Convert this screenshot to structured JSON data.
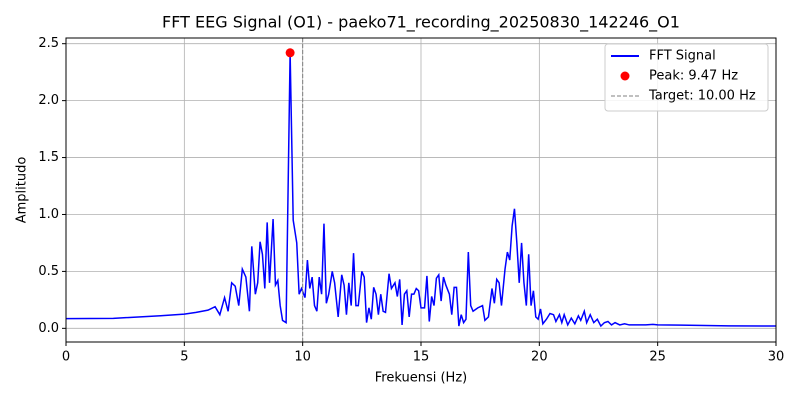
{
  "chart_data": {
    "type": "line",
    "title": "FFT EEG Signal (O1) - paeko71_recording_20250830_142246_O1",
    "x_label": "Frekuensi (Hz)",
    "y_label": "Amplitudo",
    "x": [
      0,
      2,
      4,
      5,
      5.5,
      6,
      6.3,
      6.5,
      6.7,
      6.85,
      7.0,
      7.15,
      7.3,
      7.45,
      7.6,
      7.75,
      7.85,
      8.0,
      8.1,
      8.2,
      8.3,
      8.4,
      8.5,
      8.6,
      8.75,
      8.85,
      8.95,
      9.05,
      9.15,
      9.3,
      9.47,
      9.6,
      9.75,
      9.85,
      9.95,
      10.1,
      10.2,
      10.3,
      10.4,
      10.5,
      10.6,
      10.7,
      10.8,
      10.9,
      11.0,
      11.1,
      11.25,
      11.35,
      11.5,
      11.65,
      11.75,
      11.85,
      11.95,
      12.05,
      12.15,
      12.25,
      12.35,
      12.5,
      12.6,
      12.7,
      12.8,
      12.9,
      13.0,
      13.1,
      13.2,
      13.3,
      13.4,
      13.5,
      13.65,
      13.75,
      13.9,
      14.0,
      14.1,
      14.2,
      14.3,
      14.4,
      14.5,
      14.6,
      14.7,
      14.8,
      14.9,
      15.0,
      15.15,
      15.25,
      15.35,
      15.45,
      15.55,
      15.65,
      15.75,
      15.85,
      15.95,
      16.05,
      16.2,
      16.3,
      16.4,
      16.5,
      16.6,
      16.7,
      16.8,
      16.9,
      17.0,
      17.1,
      17.2,
      17.4,
      17.6,
      17.7,
      17.85,
      18.0,
      18.1,
      18.2,
      18.3,
      18.4,
      18.55,
      18.65,
      18.75,
      18.85,
      18.95,
      19.05,
      19.15,
      19.25,
      19.35,
      19.45,
      19.55,
      19.65,
      19.75,
      19.85,
      19.95,
      20.05,
      20.15,
      20.3,
      20.45,
      20.6,
      20.7,
      20.85,
      20.95,
      21.05,
      21.2,
      21.35,
      21.5,
      21.65,
      21.75,
      21.9,
      22.0,
      22.15,
      22.3,
      22.45,
      22.6,
      22.75,
      22.9,
      23.05,
      23.2,
      23.4,
      23.6,
      23.8,
      24.0,
      24.5,
      24.8,
      25,
      26,
      28,
      30
    ],
    "series": [
      {
        "name": "FFT Signal",
        "color": "#0000ff",
        "values": [
          0.085,
          0.088,
          0.11,
          0.125,
          0.14,
          0.16,
          0.19,
          0.12,
          0.27,
          0.15,
          0.4,
          0.37,
          0.2,
          0.52,
          0.45,
          0.15,
          0.72,
          0.3,
          0.4,
          0.76,
          0.65,
          0.35,
          0.93,
          0.4,
          0.96,
          0.38,
          0.42,
          0.2,
          0.07,
          0.05,
          2.42,
          0.95,
          0.75,
          0.3,
          0.35,
          0.27,
          0.6,
          0.35,
          0.45,
          0.2,
          0.15,
          0.45,
          0.3,
          0.92,
          0.22,
          0.3,
          0.5,
          0.4,
          0.1,
          0.47,
          0.38,
          0.12,
          0.4,
          0.2,
          0.66,
          0.2,
          0.2,
          0.5,
          0.45,
          0.05,
          0.18,
          0.08,
          0.36,
          0.3,
          0.12,
          0.3,
          0.15,
          0.14,
          0.48,
          0.35,
          0.4,
          0.28,
          0.43,
          0.03,
          0.3,
          0.33,
          0.1,
          0.3,
          0.3,
          0.35,
          0.33,
          0.18,
          0.18,
          0.46,
          0.06,
          0.28,
          0.2,
          0.44,
          0.47,
          0.24,
          0.45,
          0.38,
          0.3,
          0.12,
          0.36,
          0.36,
          0.02,
          0.12,
          0.05,
          0.08,
          0.67,
          0.2,
          0.15,
          0.18,
          0.2,
          0.07,
          0.1,
          0.35,
          0.22,
          0.43,
          0.4,
          0.2,
          0.52,
          0.67,
          0.6,
          0.9,
          1.05,
          0.75,
          0.4,
          0.75,
          0.4,
          0.2,
          0.65,
          0.2,
          0.33,
          0.1,
          0.08,
          0.17,
          0.04,
          0.08,
          0.13,
          0.12,
          0.06,
          0.12,
          0.05,
          0.12,
          0.03,
          0.09,
          0.04,
          0.11,
          0.07,
          0.15,
          0.05,
          0.12,
          0.05,
          0.08,
          0.02,
          0.05,
          0.06,
          0.03,
          0.05,
          0.03,
          0.04,
          0.03,
          0.03,
          0.03,
          0.035,
          0.03,
          0.028,
          0.022,
          0.02
        ]
      }
    ],
    "peak": {
      "name": "Peak: 9.47 Hz",
      "x": 9.47,
      "value": 2.42,
      "color": "#ff0000"
    },
    "target": {
      "name": "Target: 10.00 Hz",
      "x": 10,
      "color": "#808080"
    },
    "xlim": [
      0,
      30
    ],
    "ylim": [
      -0.12,
      2.55
    ],
    "xticks": [
      0,
      5,
      10,
      15,
      20,
      25,
      30
    ],
    "yticks": [
      {
        "value": 0,
        "label": "0.0"
      },
      0.5,
      {
        "value": 1,
        "label": "1.0"
      },
      1.5,
      {
        "value": 2,
        "label": "2.0"
      },
      2.5
    ],
    "grid": true,
    "legend": "upper right"
  }
}
